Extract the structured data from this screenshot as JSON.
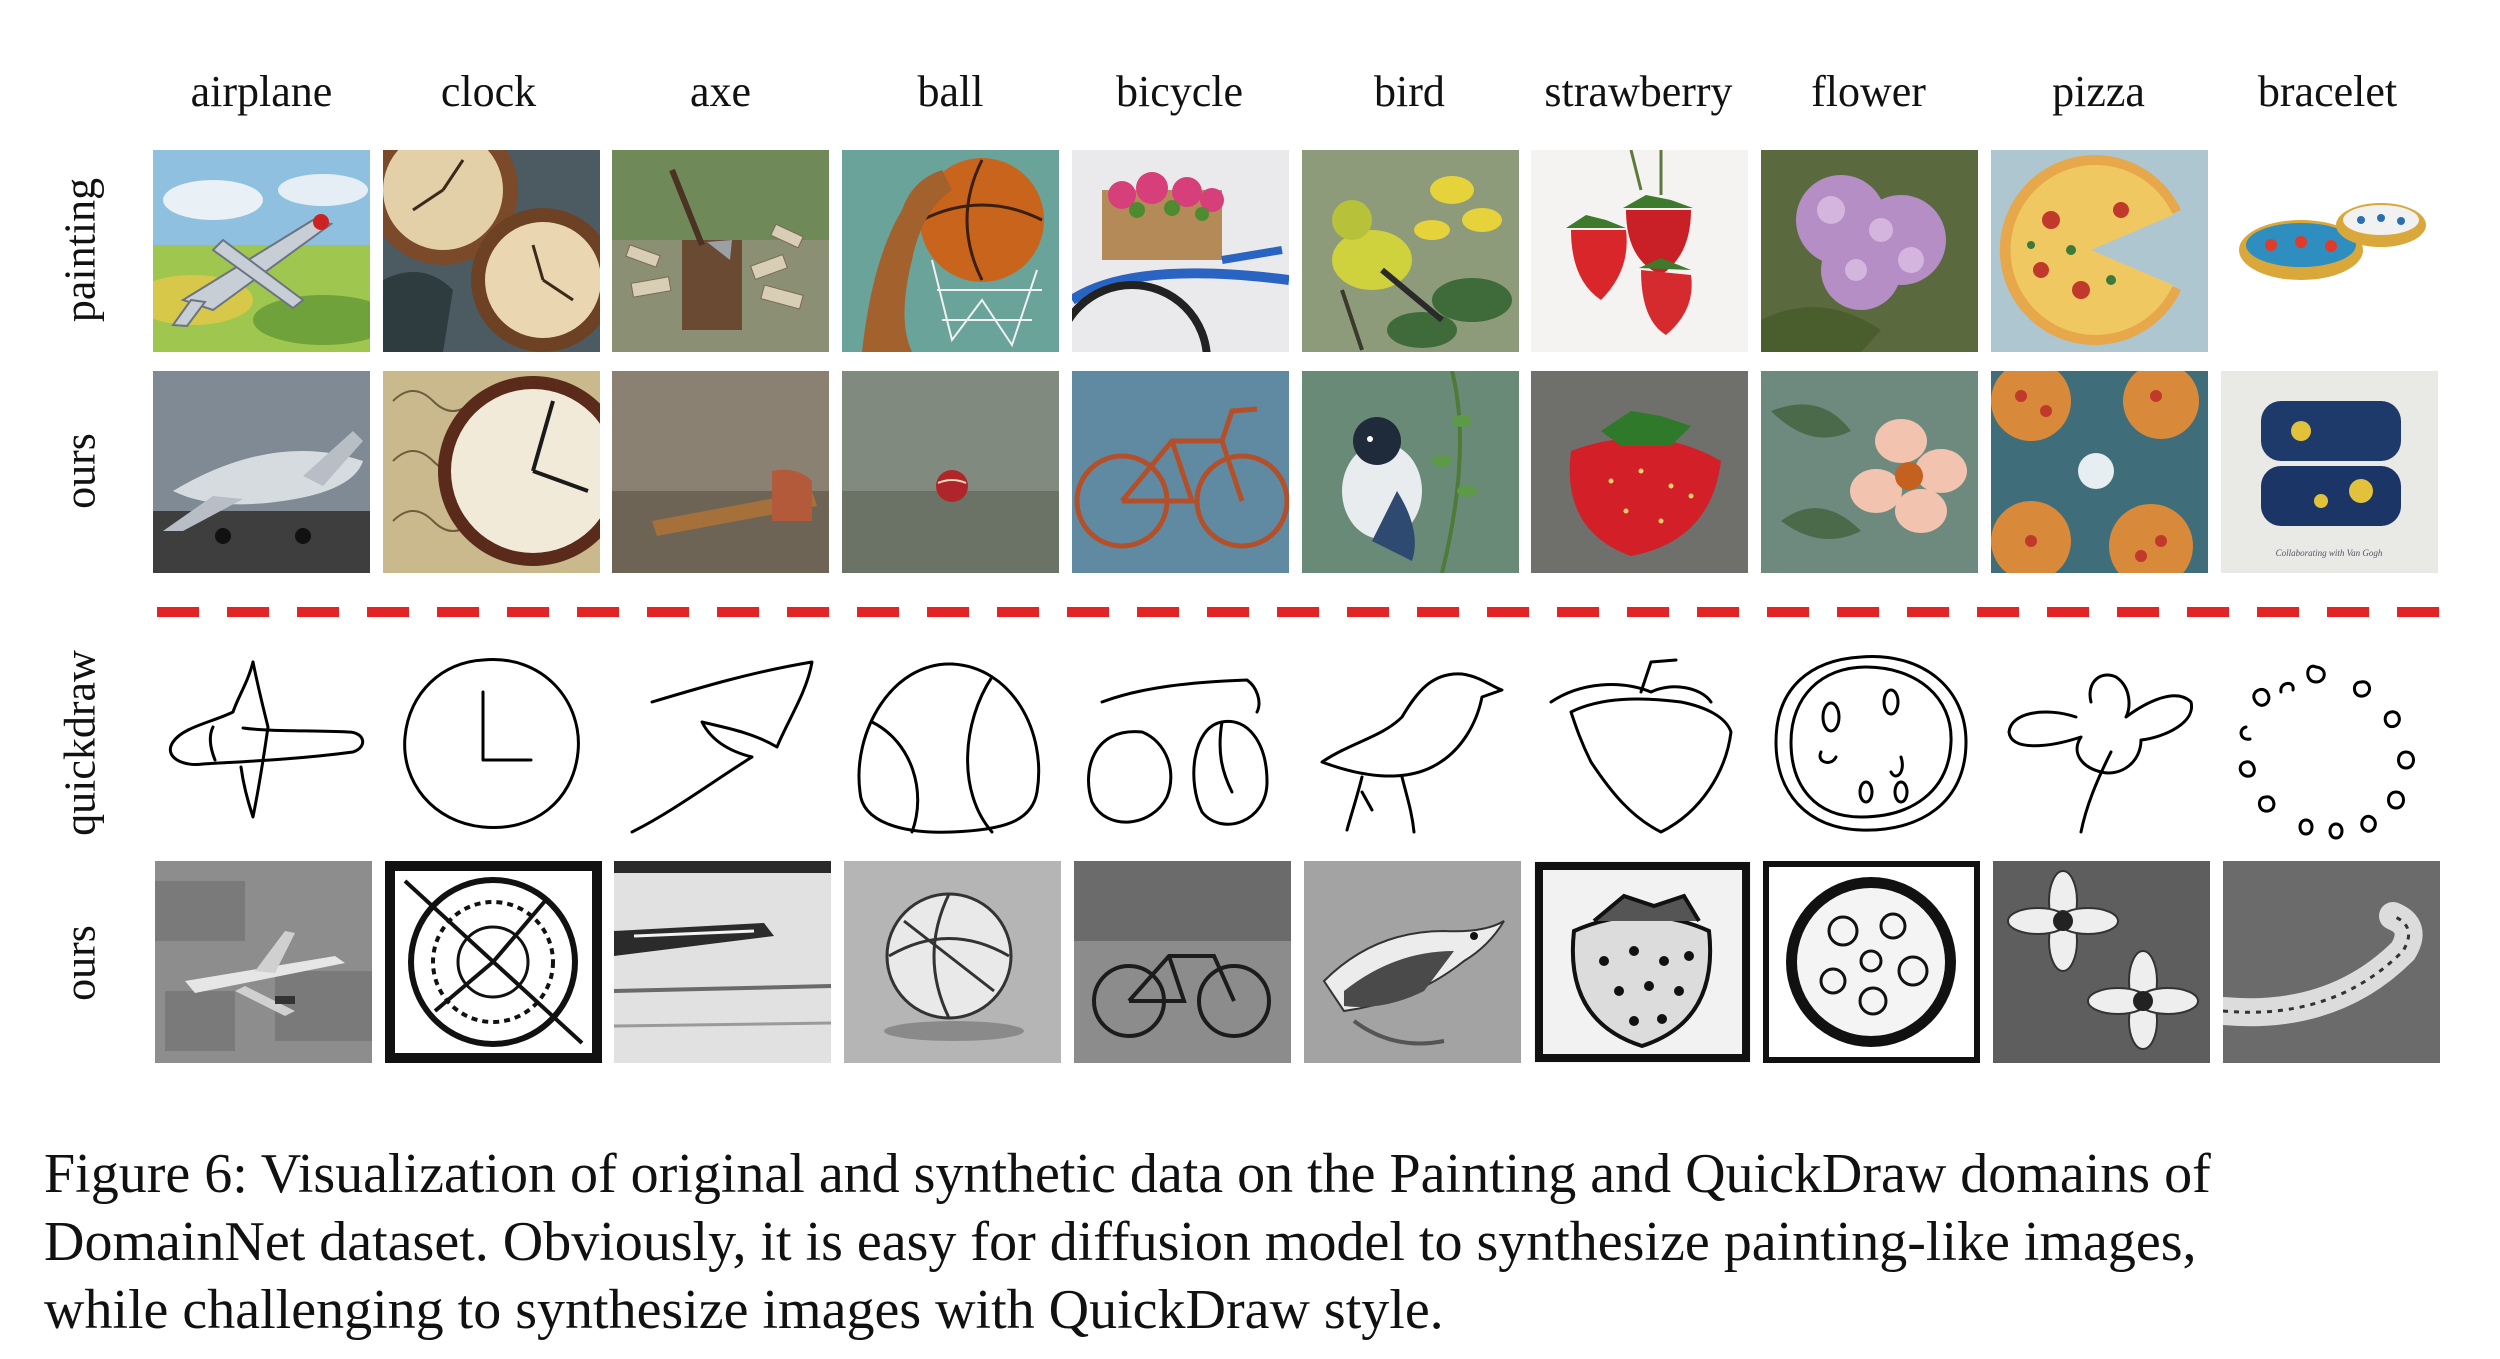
{
  "figure": {
    "categories": [
      "airplane",
      "clock",
      "axe",
      "ball",
      "bicycle",
      "bird",
      "strawberry",
      "flower",
      "pizza",
      "bracelet"
    ],
    "row_labels": {
      "painting": "painting",
      "ours_painting": "ours",
      "quickdraw": "quickdraw",
      "ours_quickdraw": "ours"
    },
    "separator_color": "#e32424",
    "caption_lines": [
      "Figure 6: Visualization of original and synthetic data on the Painting and QuickDraw domains of",
      "DomainNet dataset. Obviously, it is easy for diffusion model to synthesize painting-like images,",
      "while challenging to synthesize images with QuickDraw style."
    ],
    "watermark_text": "Collaborating with Van Gogh"
  }
}
